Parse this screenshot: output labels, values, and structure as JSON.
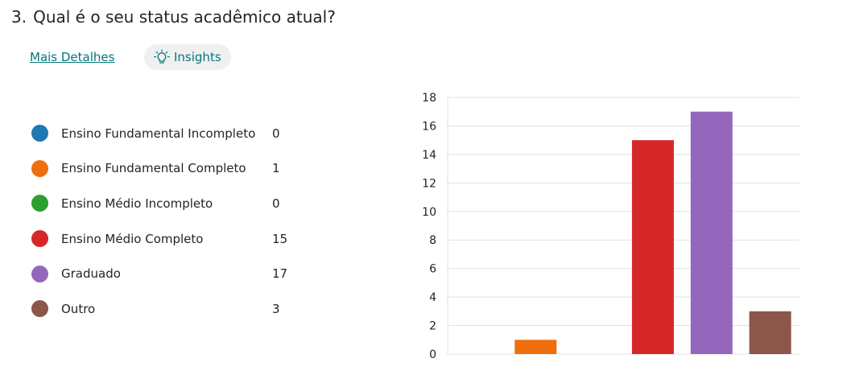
{
  "question": {
    "number": "3.",
    "title": "Qual é o seu status acadêmico atual?"
  },
  "links": {
    "details_label": "Mais Detalhes",
    "insights_label": "Insights",
    "insights_icon": "lightbulb-icon"
  },
  "colors": {
    "accent": "#03787c",
    "grid": "#e1e1e1"
  },
  "legend": [
    {
      "label": "Ensino Fundamental Incompleto",
      "count": "0",
      "color": "#1f77b4"
    },
    {
      "label": "Ensino Fundamental Completo",
      "count": "1",
      "color": "#ee6f0c"
    },
    {
      "label": "Ensino Médio Incompleto",
      "count": "0",
      "color": "#2ca02c"
    },
    {
      "label": "Ensino Médio Completo",
      "count": "15",
      "color": "#d62728"
    },
    {
      "label": "Graduado",
      "count": "17",
      "color": "#9467bd"
    },
    {
      "label": "Outro",
      "count": "3",
      "color": "#8c564b"
    }
  ],
  "chart_data": {
    "type": "bar",
    "categories": [
      "Ensino Fundamental Incompleto",
      "Ensino Fundamental Completo",
      "Ensino Médio Incompleto",
      "Ensino Médio Completo",
      "Graduado",
      "Outro"
    ],
    "values": [
      0,
      1,
      0,
      15,
      17,
      3
    ],
    "colors": [
      "#1f77b4",
      "#ee6f0c",
      "#2ca02c",
      "#d62728",
      "#9467bd",
      "#8c564b"
    ],
    "ylim": [
      0,
      18
    ],
    "yticks": [
      0,
      2,
      4,
      6,
      8,
      10,
      12,
      14,
      16,
      18
    ],
    "grid": true,
    "title": "",
    "xlabel": "",
    "ylabel": ""
  }
}
